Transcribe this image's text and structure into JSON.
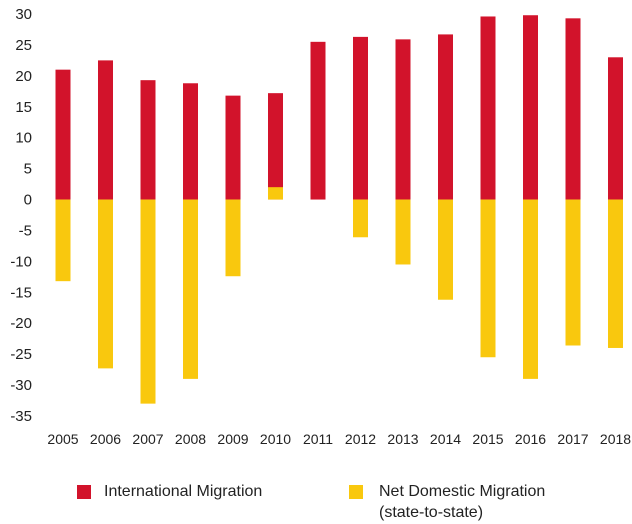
{
  "chart_data": {
    "type": "bar",
    "stacked": "diverging",
    "categories": [
      "2005",
      "2006",
      "2007",
      "2008",
      "2009",
      "2010",
      "2011",
      "2012",
      "2013",
      "2014",
      "2015",
      "2016",
      "2017",
      "2018"
    ],
    "series": [
      {
        "name": "International Migration",
        "color": "#d2132b",
        "values": [
          21,
          22.5,
          19.3,
          18.8,
          16.8,
          17.2,
          25.5,
          26.3,
          25.9,
          26.7,
          29.6,
          29.8,
          29.3,
          23
        ]
      },
      {
        "name": "Net Domestic Migration (state-to-state)",
        "color": "#f9c80e",
        "values": [
          -13.2,
          -27.3,
          -33,
          -29,
          -12.4,
          2,
          0,
          -6.1,
          -10.5,
          -16.2,
          -25.5,
          -29,
          -23.6,
          -24
        ]
      }
    ],
    "yticks": [
      "30",
      "25",
      "20",
      "15",
      "10",
      "5",
      "0",
      "-5",
      "-10",
      "-15",
      "-20",
      "-25",
      "-30",
      "-35"
    ],
    "ylim": [
      -35,
      30
    ],
    "grid": false,
    "legend_position": "bottom"
  },
  "legend": {
    "intl_label": "International Migration",
    "domestic_label_line1": "Net Domestic Migration",
    "domestic_label_line2": "(state-to-state)"
  }
}
